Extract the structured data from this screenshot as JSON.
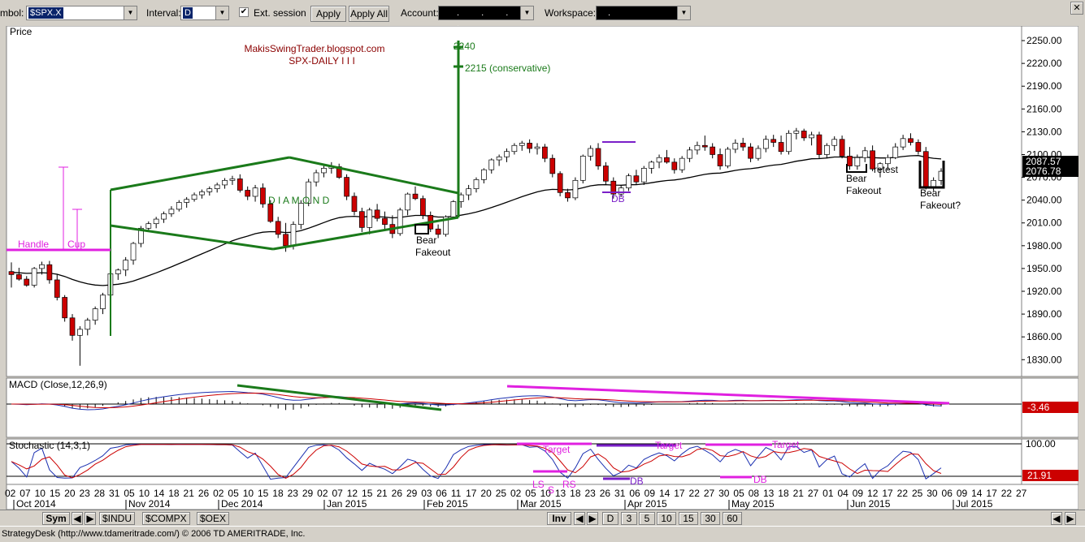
{
  "toolbar": {
    "symbol_label": "mbol:",
    "symbol_value": "$SPX.X",
    "interval_label": "Interval:",
    "interval_value": "D",
    "ext_session_label": "Ext. session",
    "ext_session_checked": "✔",
    "apply_label": "Apply",
    "apply_all_label": "Apply All",
    "account_label": "Account:",
    "account_value": ". . . .",
    "workspace_label": "Workspace:",
    "workspace_value": "."
  },
  "price_panel": {
    "title": "Price",
    "watermark_line1": "MakisSwingTrader.blogspot.com",
    "watermark_line2": "SPX-DAILY  I I I",
    "last_price_top": "2087.57",
    "last_price_bottom": "2076.78",
    "y_ticks": [
      "2250.00",
      "2220.00",
      "2190.00",
      "2160.00",
      "2130.00",
      "2100.00",
      "2070.00",
      "2040.00",
      "2010.00",
      "1980.00",
      "1950.00",
      "1920.00",
      "1890.00",
      "1860.00",
      "1830.00"
    ]
  },
  "annotations": {
    "target_2240": "2240",
    "target_2215": "2215 (conservative)",
    "diamond": "D  I  A  M  O  N  D",
    "handle": "Handle",
    "cup": "Cup",
    "bear_fakeout_1a": "Bear",
    "bear_fakeout_1b": "Fakeout",
    "db_1": "DB",
    "bear_fakeout_2a": "Bear",
    "bear_fakeout_2b": "Fakeout",
    "retest": "retest",
    "bear_fakeout_3a": "Bear",
    "bear_fakeout_3b": "Fakeout?",
    "stoch_target_1": "Target",
    "stoch_target_2": "Target",
    "stoch_target_3": "Target",
    "stoch_ls": "LS",
    "stoch_s": "S",
    "stoch_rs": "RS",
    "stoch_db_1": "DB",
    "stoch_db_2": "DB"
  },
  "macd_panel": {
    "title": "MACD (Close,12,26,9)",
    "value_label": "-3.46"
  },
  "stoch_panel": {
    "title": "Stochastic (14,3,1)",
    "level_100": "100.00",
    "value_label": "21.91"
  },
  "x_axis": {
    "day_labels": [
      "02",
      "07",
      "10",
      "15",
      "20",
      "23",
      "28",
      "31",
      "05",
      "10",
      "14",
      "18",
      "21",
      "26",
      "02",
      "05",
      "10",
      "15",
      "18",
      "23",
      "29",
      "02",
      "07",
      "12",
      "15",
      "21",
      "26",
      "29",
      "03",
      "06",
      "11",
      "17",
      "20",
      "25",
      "02",
      "05",
      "10",
      "13",
      "18",
      "23",
      "26",
      "31",
      "06",
      "09",
      "14",
      "17",
      "22",
      "27",
      "30",
      "05",
      "08",
      "13",
      "18",
      "21",
      "27",
      "01",
      "04",
      "09",
      "12",
      "17",
      "22",
      "25",
      "30",
      "06",
      "09",
      "14",
      "17",
      "22",
      "27"
    ],
    "month_labels": [
      "Oct 2014",
      "Nov 2014",
      "Dec 2014",
      "Jan 2015",
      "Feb 2015",
      "Mar 2015",
      "Apr 2015",
      "May 2015",
      "Jun 2015",
      "Jul 2015"
    ]
  },
  "bottom_bar": {
    "sym_button": "Sym",
    "tabs": [
      "$INDU",
      "$COMPX",
      "$OEX"
    ],
    "inv_button": "Inv",
    "timeframes": [
      "D",
      "3",
      "5",
      "10",
      "15",
      "30",
      "60"
    ]
  },
  "status_bar": {
    "text": "StrategyDesk (http://www.tdameritrade.com/) © 2006 TD AMERITRADE, Inc."
  },
  "colors": {
    "up_candle": "#ffffff",
    "down_candle": "#cc0000",
    "pattern_green": "#1a7a1a",
    "annotation_magenta": "#e020e0",
    "annotation_purple": "#7a1fc8",
    "watermark_red": "#8b0000"
  },
  "chart_data": {
    "type": "candlestick",
    "title": "SPX-DAILY",
    "ylim": [
      1810,
      2265
    ],
    "ma_note": "moving average line shown",
    "candles": [
      [
        1946,
        1958,
        1925,
        1942
      ],
      [
        1942,
        1951,
        1934,
        1936
      ],
      [
        1936,
        1940,
        1926,
        1928
      ],
      [
        1928,
        1952,
        1925,
        1950
      ],
      [
        1950,
        1959,
        1942,
        1955
      ],
      [
        1955,
        1960,
        1930,
        1935
      ],
      [
        1935,
        1943,
        1908,
        1912
      ],
      [
        1912,
        1915,
        1880,
        1885
      ],
      [
        1885,
        1890,
        1855,
        1862
      ],
      [
        1862,
        1874,
        1822,
        1870
      ],
      [
        1870,
        1885,
        1862,
        1882
      ],
      [
        1882,
        1900,
        1876,
        1897
      ],
      [
        1897,
        1918,
        1890,
        1915
      ],
      [
        1915,
        1945,
        1912,
        1943
      ],
      [
        1943,
        1950,
        1935,
        1948
      ],
      [
        1948,
        1965,
        1940,
        1961
      ],
      [
        1961,
        1985,
        1955,
        1983
      ],
      [
        1983,
        2006,
        1978,
        2003
      ],
      [
        2003,
        2012,
        2000,
        2009
      ],
      [
        2009,
        2018,
        2003,
        2015
      ],
      [
        2015,
        2025,
        2010,
        2022
      ],
      [
        2022,
        2032,
        2018,
        2028
      ],
      [
        2028,
        2040,
        2025,
        2037
      ],
      [
        2037,
        2044,
        2030,
        2041
      ],
      [
        2041,
        2050,
        2038,
        2047
      ],
      [
        2047,
        2054,
        2042,
        2051
      ],
      [
        2051,
        2058,
        2046,
        2055
      ],
      [
        2055,
        2063,
        2050,
        2060
      ],
      [
        2060,
        2069,
        2055,
        2066
      ],
      [
        2066,
        2072,
        2060,
        2068
      ],
      [
        2068,
        2074,
        2050,
        2053
      ],
      [
        2053,
        2058,
        2040,
        2045
      ],
      [
        2045,
        2060,
        2038,
        2056
      ],
      [
        2056,
        2062,
        2030,
        2035
      ],
      [
        2035,
        2040,
        2010,
        2012
      ],
      [
        2012,
        2018,
        1990,
        1995
      ],
      [
        1995,
        2010,
        1972,
        1980
      ],
      [
        1980,
        2012,
        1975,
        2008
      ],
      [
        2008,
        2040,
        2002,
        2036
      ],
      [
        2036,
        2068,
        2032,
        2064
      ],
      [
        2064,
        2080,
        2058,
        2076
      ],
      [
        2076,
        2085,
        2070,
        2082
      ],
      [
        2082,
        2090,
        2075,
        2084
      ],
      [
        2084,
        2088,
        2068,
        2070
      ],
      [
        2070,
        2074,
        2040,
        2045
      ],
      [
        2045,
        2050,
        2020,
        2025
      ],
      [
        2025,
        2030,
        1998,
        2004
      ],
      [
        2004,
        2030,
        1995,
        2027
      ],
      [
        2027,
        2035,
        2012,
        2016
      ],
      [
        2016,
        2025,
        2000,
        2008
      ],
      [
        2008,
        2020,
        1990,
        1996
      ],
      [
        1996,
        2030,
        1993,
        2027
      ],
      [
        2027,
        2050,
        2020,
        2048
      ],
      [
        2048,
        2058,
        2040,
        2042
      ],
      [
        2042,
        2046,
        2015,
        2020
      ],
      [
        2020,
        2025,
        1998,
        2002
      ],
      [
        2002,
        2008,
        1990,
        1995
      ],
      [
        1995,
        2020,
        1992,
        2018
      ],
      [
        2018,
        2040,
        2015,
        2038
      ],
      [
        2038,
        2050,
        2030,
        2047
      ],
      [
        2047,
        2060,
        2040,
        2055
      ],
      [
        2055,
        2070,
        2050,
        2067
      ],
      [
        2067,
        2082,
        2062,
        2080
      ],
      [
        2080,
        2095,
        2075,
        2093
      ],
      [
        2093,
        2100,
        2085,
        2097
      ],
      [
        2097,
        2108,
        2090,
        2104
      ],
      [
        2104,
        2115,
        2100,
        2112
      ],
      [
        2112,
        2118,
        2105,
        2115
      ],
      [
        2115,
        2120,
        2102,
        2108
      ],
      [
        2108,
        2115,
        2100,
        2110
      ],
      [
        2110,
        2114,
        2090,
        2095
      ],
      [
        2095,
        2100,
        2070,
        2075
      ],
      [
        2075,
        2078,
        2045,
        2050
      ],
      [
        2050,
        2055,
        2038,
        2043
      ],
      [
        2043,
        2070,
        2040,
        2066
      ],
      [
        2066,
        2100,
        2062,
        2098
      ],
      [
        2098,
        2112,
        2092,
        2108
      ],
      [
        2108,
        2115,
        2080,
        2085
      ],
      [
        2085,
        2090,
        2060,
        2065
      ],
      [
        2065,
        2070,
        2042,
        2048
      ],
      [
        2048,
        2060,
        2044,
        2056
      ],
      [
        2056,
        2075,
        2052,
        2072
      ],
      [
        2072,
        2080,
        2060,
        2064
      ],
      [
        2064,
        2085,
        2060,
        2082
      ],
      [
        2082,
        2092,
        2075,
        2090
      ],
      [
        2090,
        2100,
        2082,
        2096
      ],
      [
        2096,
        2106,
        2088,
        2090
      ],
      [
        2090,
        2095,
        2075,
        2080
      ],
      [
        2080,
        2098,
        2076,
        2095
      ],
      [
        2095,
        2110,
        2090,
        2106
      ],
      [
        2106,
        2117,
        2100,
        2112
      ],
      [
        2112,
        2125,
        2105,
        2110
      ],
      [
        2110,
        2115,
        2095,
        2100
      ],
      [
        2100,
        2108,
        2080,
        2085
      ],
      [
        2085,
        2110,
        2082,
        2107
      ],
      [
        2107,
        2120,
        2102,
        2115
      ],
      [
        2115,
        2122,
        2105,
        2110
      ],
      [
        2110,
        2115,
        2090,
        2095
      ],
      [
        2095,
        2112,
        2092,
        2108
      ],
      [
        2108,
        2125,
        2103,
        2120
      ],
      [
        2120,
        2126,
        2110,
        2116
      ],
      [
        2116,
        2125,
        2100,
        2104
      ],
      [
        2104,
        2132,
        2100,
        2128
      ],
      [
        2128,
        2135,
        2120,
        2131
      ],
      [
        2131,
        2134,
        2118,
        2122
      ],
      [
        2122,
        2130,
        2112,
        2126
      ],
      [
        2126,
        2130,
        2095,
        2100
      ],
      [
        2100,
        2115,
        2095,
        2112
      ],
      [
        2112,
        2124,
        2105,
        2120
      ],
      [
        2120,
        2125,
        2095,
        2098
      ],
      [
        2098,
        2110,
        2080,
        2085
      ],
      [
        2085,
        2100,
        2080,
        2096
      ],
      [
        2096,
        2110,
        2090,
        2105
      ],
      [
        2105,
        2112,
        2078,
        2081
      ],
      [
        2081,
        2090,
        2070,
        2088
      ],
      [
        2088,
        2100,
        2080,
        2096
      ],
      [
        2096,
        2115,
        2094,
        2110
      ],
      [
        2110,
        2126,
        2106,
        2121
      ],
      [
        2121,
        2128,
        2112,
        2116
      ],
      [
        2116,
        2120,
        2100,
        2104
      ],
      [
        2104,
        2110,
        2054,
        2057
      ],
      [
        2057,
        2070,
        2052,
        2066
      ],
      [
        2066,
        2082,
        2060,
        2078
      ]
    ]
  }
}
